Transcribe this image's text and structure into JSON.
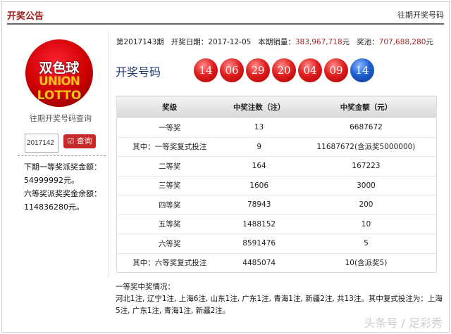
{
  "header": {
    "title": "开奖公告",
    "history_link": "往期开奖号码"
  },
  "logo": {
    "line1": "双色球",
    "line2": "UNION",
    "line3": "LOTTO"
  },
  "sidebar": {
    "query_label": "往期开奖号码查询",
    "input_value": "2017142",
    "query_button": "查询",
    "icon": "checkbox-edit-icon",
    "info_lines": [
      "下期一等奖派奖金额：54999992元。",
      "六等奖派奖奖金余额：114836280元。"
    ]
  },
  "draw": {
    "issue": "第2017143期",
    "date_label": "开奖日期：",
    "date": "2017-12-05",
    "sales_label": "本期销量：",
    "sales": "383,967,718",
    "pool_label": "奖池：",
    "pool": "707,688,280",
    "unit": "元",
    "numbers_label": "开奖号码",
    "red_balls": [
      "14",
      "06",
      "29",
      "20",
      "04",
      "09"
    ],
    "blue_ball": "14"
  },
  "table": {
    "headers": [
      "奖级",
      "中奖注数（注）",
      "中奖金额（元）"
    ],
    "rows": [
      [
        "一等奖",
        "13",
        "6687672"
      ],
      [
        "其中：一等奖复式投注",
        "9",
        "11687672(含派奖5000000)"
      ],
      [
        "二等奖",
        "164",
        "167223"
      ],
      [
        "三等奖",
        "1606",
        "3000"
      ],
      [
        "四等奖",
        "78943",
        "200"
      ],
      [
        "五等奖",
        "1488152",
        "10"
      ],
      [
        "六等奖",
        "8591476",
        "5"
      ],
      [
        "其中：六等奖复式投注",
        "4485074",
        "10(含派奖5)"
      ]
    ]
  },
  "first_prize": {
    "title": "一等奖中奖情况：",
    "text": "河北1注, 辽宁1注, 上海6注, 山东1注, 广东1注, 青海1注, 新疆2注, 共13注。其中复式投注为：上海5注, 广东1注, 青海1注, 新疆2注。"
  },
  "watermark": "头条号 / 足彩秀",
  "colors": {
    "accent": "#a0201a",
    "red_ball": "#e02020",
    "blue_ball": "#2060d0"
  }
}
